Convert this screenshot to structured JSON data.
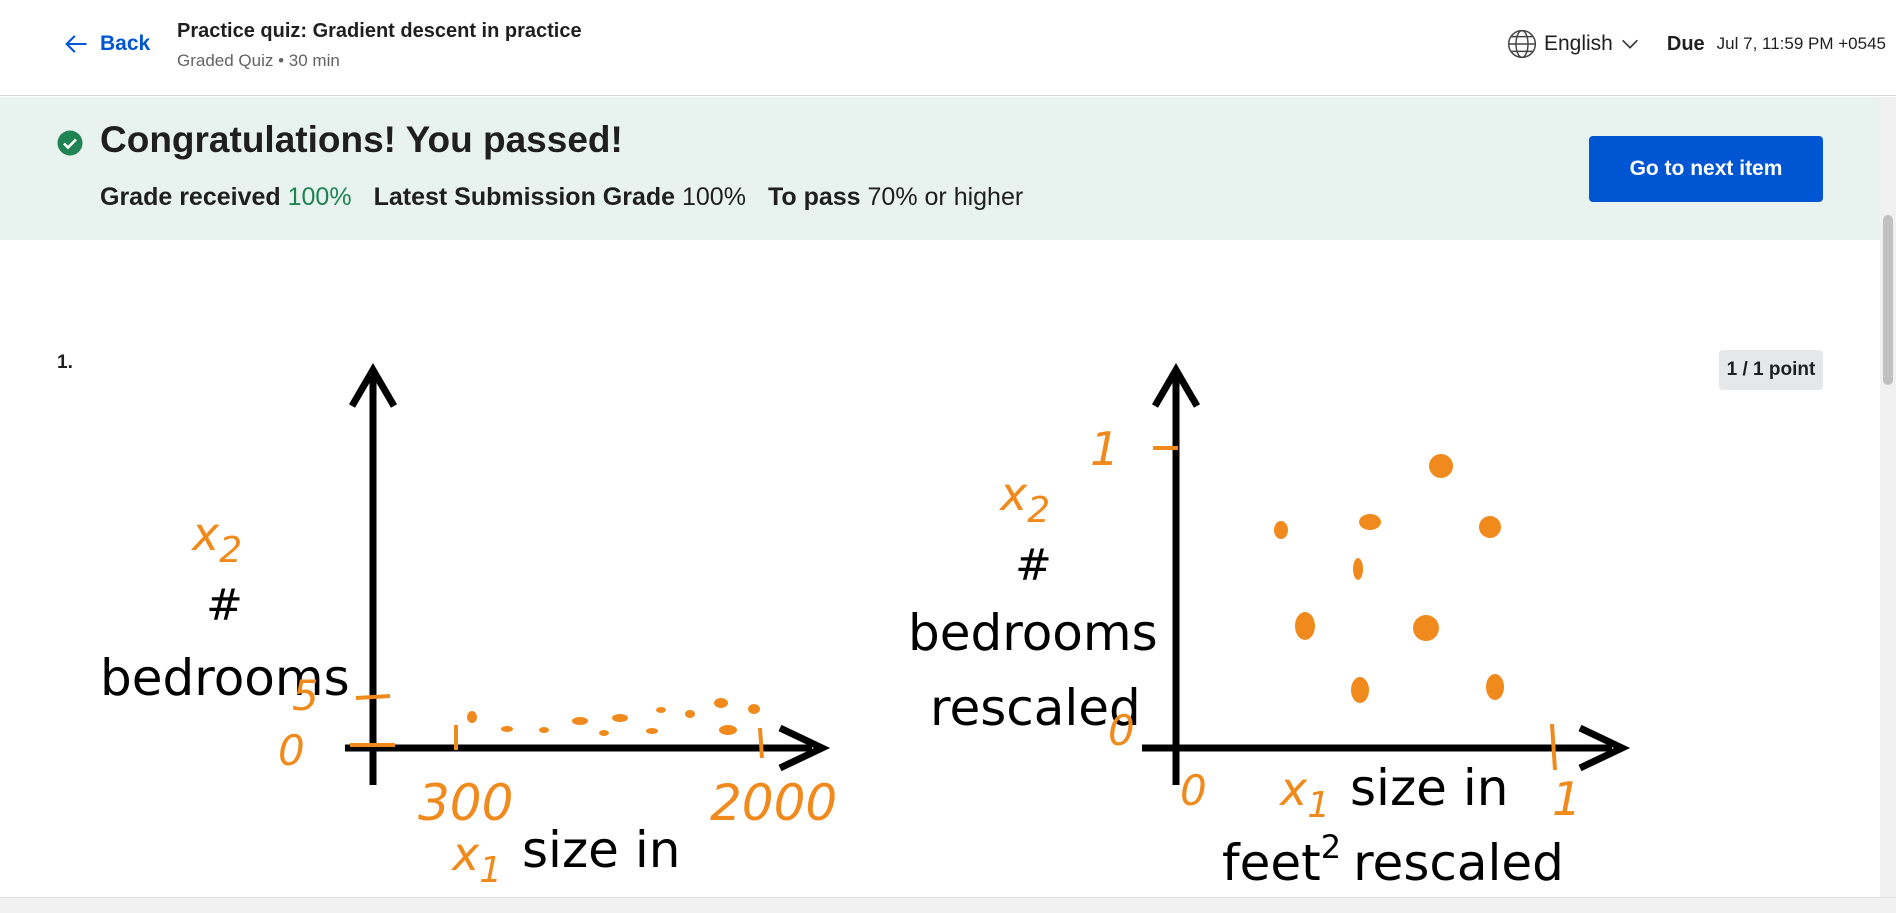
{
  "header": {
    "back_label": "Back",
    "quiz_title": "Practice quiz: Gradient descent in practice",
    "quiz_meta": "Graded Quiz • 30 min",
    "language": "English",
    "due_label": "Due",
    "due_date": "Jul 7, 11:59 PM +0545"
  },
  "banner": {
    "congrats": "Congratulations! You passed!",
    "grade_received_label": "Grade received",
    "grade_received_value": "100%",
    "latest_label": "Latest Submission Grade",
    "latest_value": "100%",
    "to_pass_label": "To pass",
    "to_pass_value": "70% or higher",
    "next_button": "Go to next item"
  },
  "question": {
    "number": "1.",
    "points": "1 / 1 point"
  },
  "figure": {
    "left": {
      "x2": "x",
      "x2_sub": "2",
      "hash": "#",
      "bedrooms": "bedrooms",
      "y_tick_top": "5",
      "origin": "0",
      "x_tick_low": "300",
      "x_tick_high": "2000",
      "x1": "x",
      "x1_sub": "1",
      "size_in": "size in"
    },
    "right": {
      "x2": "x",
      "x2_sub": "2",
      "hash": "#",
      "bedrooms": "bedrooms",
      "rescaled": "rescaled",
      "y_tick_top": "1",
      "y_origin": "0",
      "x_origin": "0",
      "x_tick_high": "1",
      "x1": "x",
      "x1_sub": "1",
      "size_in": "size in",
      "feet": "feet",
      "feet_sup": "2",
      "feet_rescaled": "rescaled"
    }
  },
  "colors": {
    "accent": "#0056d2",
    "success": "#1f8354",
    "banner_bg": "#e8f2ee",
    "ink": "#f08a1c"
  },
  "icons": [
    "back-arrow-icon",
    "globe-icon",
    "chevron-down-icon",
    "check-circle-icon"
  ]
}
